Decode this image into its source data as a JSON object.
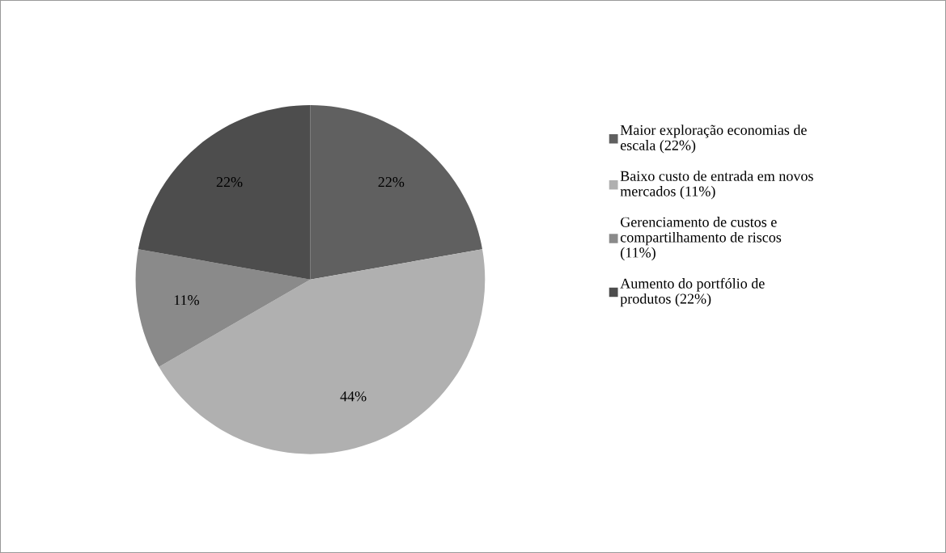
{
  "chart_data": {
    "type": "pie",
    "categories": [
      "Maior exploração economias de\nescala (22%)",
      "Baixo custo de entrada em novos\nmercados (11%)",
      "Gerenciamento de custos e\ncompartilhamento de riscos\n(11%)",
      "Aumento do portfólio de\nprodutos (22%)"
    ],
    "values": [
      22,
      44,
      11,
      22
    ],
    "value_labels": [
      "22%",
      "44%",
      "11%",
      "22%"
    ],
    "colors": [
      "#606060",
      "#b0b0b0",
      "#8a8a8a",
      "#4d4d4d"
    ],
    "legend": "right"
  }
}
